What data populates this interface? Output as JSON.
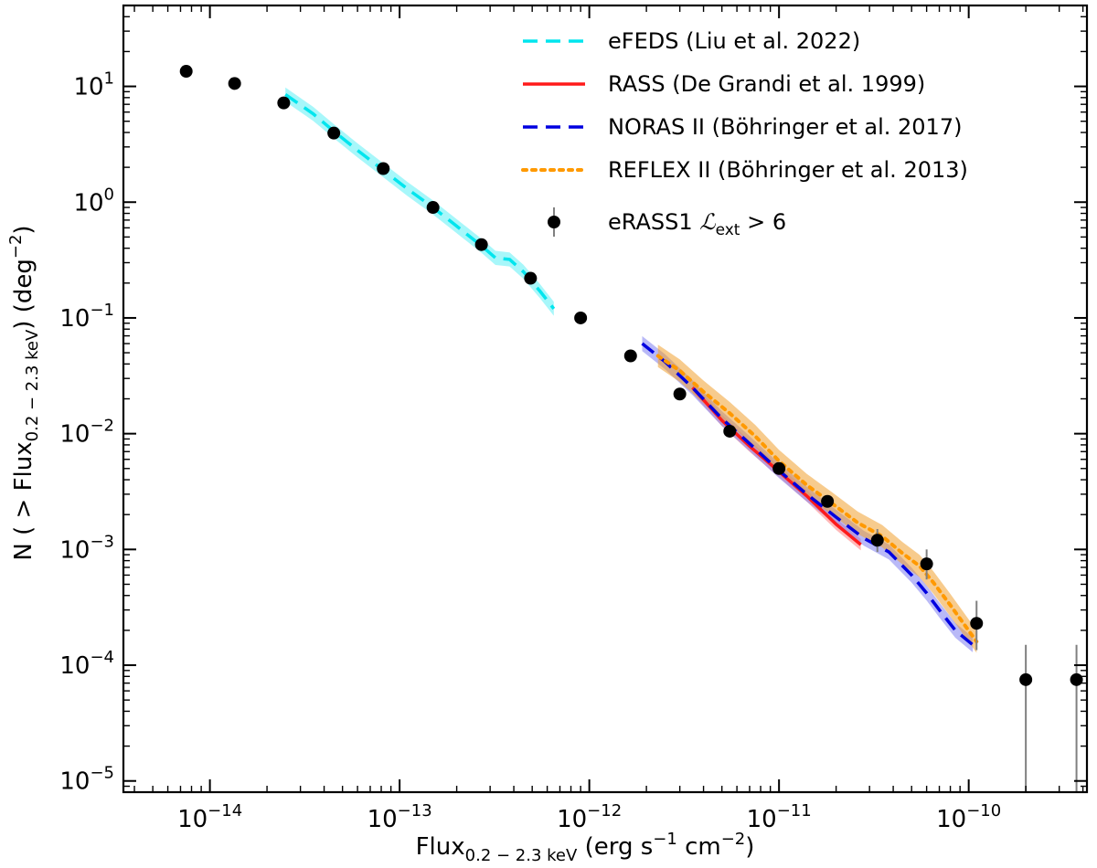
{
  "chart_data": {
    "type": "scatter",
    "xscale": "log",
    "yscale": "log",
    "xlim": [
      3.5e-15,
      4.2e-10
    ],
    "ylim": [
      8e-06,
      50
    ],
    "xticks": [
      {
        "value": 1e-14,
        "base": "10",
        "exp": "−14"
      },
      {
        "value": 1e-13,
        "base": "10",
        "exp": "−13"
      },
      {
        "value": 1e-12,
        "base": "10",
        "exp": "−12"
      },
      {
        "value": 1e-11,
        "base": "10",
        "exp": "−11"
      },
      {
        "value": 1e-10,
        "base": "10",
        "exp": "−10"
      }
    ],
    "yticks": [
      {
        "value": 10,
        "base": "10",
        "exp": "1"
      },
      {
        "value": 1,
        "base": "10",
        "exp": "0"
      },
      {
        "value": 0.1,
        "base": "10",
        "exp": "−1"
      },
      {
        "value": 0.01,
        "base": "10",
        "exp": "−2"
      },
      {
        "value": 0.001,
        "base": "10",
        "exp": "−3"
      },
      {
        "value": 0.0001,
        "base": "10",
        "exp": "−4"
      },
      {
        "value": 1e-05,
        "base": "10",
        "exp": "−5"
      }
    ],
    "xlabel": {
      "main": "Flux",
      "sub": "0.2 − 2.3 keV",
      "rest": " (erg s",
      "sup1": "−1",
      "mid": " cm",
      "sup2": "−2",
      "end": ")"
    },
    "ylabel": {
      "pre": "N ( > Flux",
      "sub": "0.2 − 2.3 keV",
      "mid": ") (deg",
      "sup": "−2",
      "end": ")"
    },
    "legend_position": "top-right",
    "series": [
      {
        "name": "eFEDS (Liu et al. 2022)",
        "kind": "line",
        "style": "dashed",
        "color": "#00e5ee",
        "band_color": "#5ff0f5",
        "x": [
          2.5e-14,
          3.5e-14,
          4.5e-14,
          6e-14,
          8e-14,
          1.1e-13,
          1.5e-13,
          2e-13,
          2.7e-13,
          3.2e-13,
          3.8e-13,
          4.5e-13,
          5.5e-13,
          6.5e-13
        ],
        "y": [
          8.5,
          5.8,
          4.1,
          2.8,
          1.95,
          1.3,
          0.9,
          0.62,
          0.42,
          0.33,
          0.32,
          0.25,
          0.17,
          0.12
        ],
        "band_factor": 1.15
      },
      {
        "name": "RASS (De Grandi et al. 1999)",
        "kind": "line",
        "style": "solid",
        "color": "#ff1a1a",
        "band_color": "#ff8080",
        "x": [
          3.5e-12,
          5e-12,
          7e-12,
          1e-11,
          1.4e-11,
          2e-11,
          2.7e-11
        ],
        "y": [
          0.025,
          0.013,
          0.0078,
          0.0047,
          0.0029,
          0.00165,
          0.0011
        ],
        "band_factor": 1.12
      },
      {
        "name": "NORAS II (Böhringer et al. 2017)",
        "kind": "line",
        "style": "dashed",
        "color": "#0000e0",
        "band_color": "#8080f0",
        "x": [
          1.9e-12,
          2.5e-12,
          3.5e-12,
          5e-12,
          7e-12,
          1e-11,
          1.4e-11,
          2e-11,
          2.8e-11,
          3.8e-11,
          5e-11,
          6e-11,
          7e-11,
          8.5e-11,
          1.05e-10
        ],
        "y": [
          0.06,
          0.042,
          0.025,
          0.0135,
          0.0082,
          0.0048,
          0.003,
          0.0019,
          0.00125,
          0.00095,
          0.0006,
          0.00042,
          0.0003,
          0.0002,
          0.00015
        ],
        "band_factor": 1.16
      },
      {
        "name": "REFLEX II (Böhringer et al. 2013)",
        "kind": "line",
        "style": "dotted",
        "color": "#ff9900",
        "band_color": "#f0a030",
        "x": [
          2.3e-12,
          3e-12,
          4e-12,
          5.5e-12,
          7.5e-12,
          1e-11,
          1.4e-11,
          1.9e-11,
          2.6e-11,
          3.5e-11,
          4.5e-11,
          5.5e-11,
          6.5e-11,
          8e-11,
          1.1e-10
        ],
        "y": [
          0.047,
          0.035,
          0.023,
          0.015,
          0.0095,
          0.0058,
          0.0036,
          0.0025,
          0.0017,
          0.0013,
          0.00092,
          0.00072,
          0.00052,
          0.00033,
          0.00016
        ],
        "band_factor": 1.25
      },
      {
        "name": "eRASS1 ℒext > 6",
        "legend_main": "eRASS1 ",
        "legend_script": "ℒ",
        "legend_sub": "ext",
        "legend_rest": " > 6",
        "kind": "points",
        "color": "#000000",
        "errcolor": "#808080",
        "x": [
          7.5e-15,
          1.35e-14,
          2.45e-14,
          4.5e-14,
          8.2e-14,
          1.5e-13,
          2.7e-13,
          4.9e-13,
          9e-13,
          1.65e-12,
          3e-12,
          5.5e-12,
          1e-11,
          1.8e-11,
          3.3e-11,
          6e-11,
          1.1e-10,
          2e-10,
          3.7e-10
        ],
        "y": [
          13.5,
          10.6,
          7.2,
          3.95,
          1.95,
          0.9,
          0.43,
          0.22,
          0.1,
          0.047,
          0.022,
          0.0105,
          0.005,
          0.0026,
          0.0012,
          0.00075,
          0.00023,
          7.5e-05,
          7.5e-05
        ],
        "yerr_lo": [
          13.5,
          10.6,
          7.2,
          3.95,
          1.95,
          0.9,
          0.43,
          0.22,
          0.1,
          0.047,
          0.022,
          0.0105,
          0.005,
          0.0026,
          0.00095,
          0.00055,
          0.000135,
          1e-06,
          1e-06
        ],
        "yerr_hi": [
          13.5,
          10.6,
          7.2,
          3.95,
          1.95,
          0.9,
          0.43,
          0.22,
          0.1,
          0.047,
          0.022,
          0.0105,
          0.005,
          0.0026,
          0.0015,
          0.001,
          0.00036,
          0.00015,
          0.00015
        ]
      }
    ]
  }
}
